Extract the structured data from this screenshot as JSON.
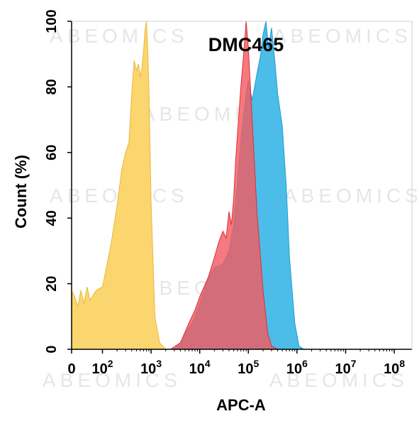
{
  "chart_data": {
    "type": "area",
    "title": "DMC465",
    "xlabel": "APC-A",
    "ylabel": "Count  (%)",
    "x_scale": "biexponential-log",
    "xlim": [
      0,
      100000000
    ],
    "ylim": [
      0,
      100
    ],
    "x_ticks": [
      {
        "base": "0",
        "exp": ""
      },
      {
        "base": "10",
        "exp": "2"
      },
      {
        "base": "10",
        "exp": "3"
      },
      {
        "base": "10",
        "exp": "4"
      },
      {
        "base": "10",
        "exp": "5"
      },
      {
        "base": "10",
        "exp": "6"
      },
      {
        "base": "10",
        "exp": "7"
      },
      {
        "base": "10",
        "exp": "8"
      }
    ],
    "y_ticks": [
      "0",
      "20",
      "40",
      "60",
      "80",
      "100"
    ],
    "grid": false,
    "watermark": "ABEOMICS",
    "series": [
      {
        "color": "#fbd56e",
        "stroke": "#e8b93a",
        "points": [
          [
            0,
            18
          ],
          [
            10,
            16
          ],
          [
            20,
            13
          ],
          [
            30,
            18
          ],
          [
            40,
            14
          ],
          [
            50,
            19
          ],
          [
            60,
            15
          ],
          [
            80,
            18
          ],
          [
            100,
            19
          ],
          [
            150,
            32
          ],
          [
            200,
            44
          ],
          [
            250,
            55
          ],
          [
            300,
            60
          ],
          [
            350,
            63
          ],
          [
            400,
            78
          ],
          [
            450,
            88
          ],
          [
            500,
            85
          ],
          [
            550,
            87
          ],
          [
            600,
            83
          ],
          [
            650,
            86
          ],
          [
            700,
            91
          ],
          [
            750,
            97
          ],
          [
            800,
            100
          ],
          [
            850,
            92
          ],
          [
            900,
            80
          ],
          [
            1000,
            45
          ],
          [
            1200,
            10
          ],
          [
            1500,
            2
          ],
          [
            2000,
            0
          ],
          [
            3000,
            0
          ]
        ]
      },
      {
        "color": "#4bbde8",
        "stroke": "#1d9fd6",
        "points": [
          [
            3000,
            0
          ],
          [
            4000,
            2
          ],
          [
            5000,
            5
          ],
          [
            7000,
            8
          ],
          [
            10000,
            14
          ],
          [
            15000,
            22
          ],
          [
            20000,
            25
          ],
          [
            30000,
            26
          ],
          [
            40000,
            30
          ],
          [
            50000,
            38
          ],
          [
            60000,
            52
          ],
          [
            70000,
            64
          ],
          [
            80000,
            72
          ],
          [
            90000,
            78
          ],
          [
            100000,
            82
          ],
          [
            120000,
            76
          ],
          [
            150000,
            84
          ],
          [
            180000,
            90
          ],
          [
            200000,
            96
          ],
          [
            230000,
            100
          ],
          [
            260000,
            92
          ],
          [
            300000,
            98
          ],
          [
            350000,
            88
          ],
          [
            400000,
            78
          ],
          [
            500000,
            68
          ],
          [
            600000,
            50
          ],
          [
            700000,
            28
          ],
          [
            900000,
            8
          ],
          [
            1100000,
            1
          ],
          [
            1400000,
            0
          ]
        ]
      },
      {
        "color": "#f35b62",
        "stroke": "#e02c36",
        "opacity": 0.82,
        "points": [
          [
            2500,
            0
          ],
          [
            4000,
            2
          ],
          [
            6000,
            8
          ],
          [
            8000,
            12
          ],
          [
            10000,
            16
          ],
          [
            15000,
            22
          ],
          [
            20000,
            28
          ],
          [
            25000,
            33
          ],
          [
            30000,
            36
          ],
          [
            35000,
            34
          ],
          [
            40000,
            42
          ],
          [
            45000,
            38
          ],
          [
            50000,
            46
          ],
          [
            55000,
            58
          ],
          [
            60000,
            66
          ],
          [
            70000,
            80
          ],
          [
            80000,
            90
          ],
          [
            90000,
            100
          ],
          [
            100000,
            92
          ],
          [
            120000,
            70
          ],
          [
            150000,
            42
          ],
          [
            200000,
            18
          ],
          [
            250000,
            5
          ],
          [
            300000,
            1
          ],
          [
            400000,
            0
          ]
        ]
      }
    ]
  }
}
